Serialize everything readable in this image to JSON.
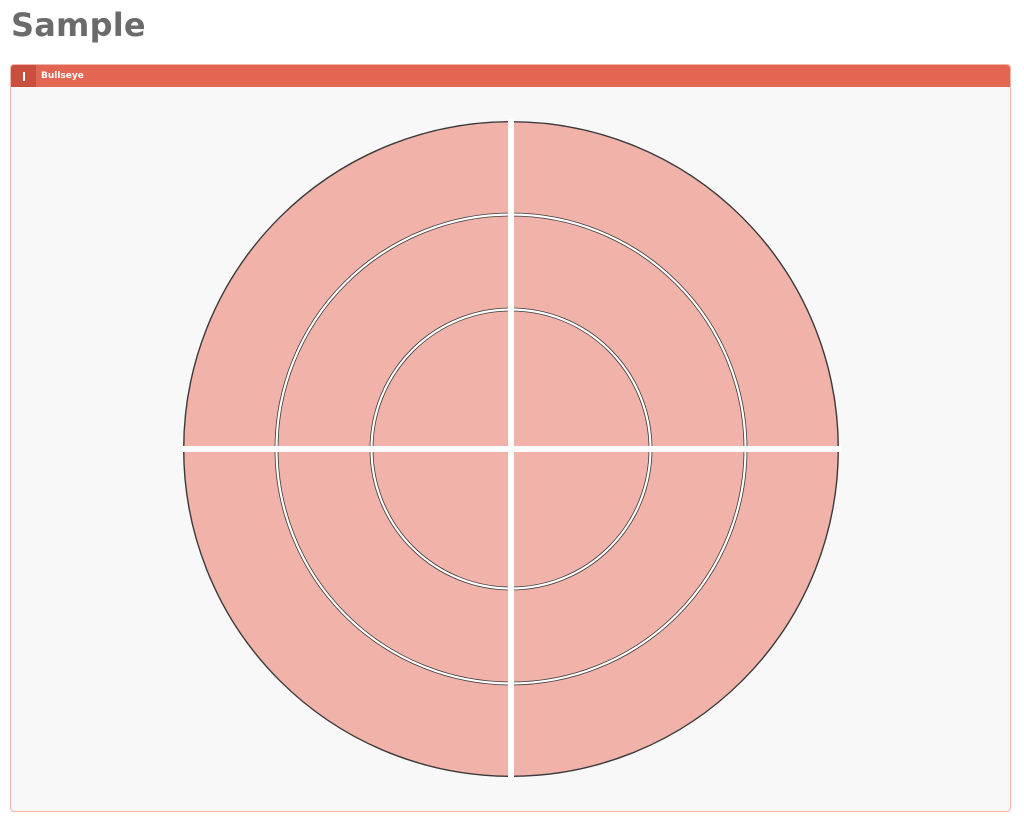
{
  "page": {
    "title": "Sample"
  },
  "panel": {
    "title": "Bullseye",
    "handle_icon": "drag-handle-icon"
  },
  "bullseye": {
    "rings": 3,
    "quadrants": 4,
    "fill_color": "#f1b2aa",
    "outline_color": "#3a3a3a",
    "gap_color": "#ffffff",
    "panel_color": "#f8f8f8",
    "header_color": "#e36653",
    "segments": [
      {
        "ring": "inner",
        "quadrant": "top-left"
      },
      {
        "ring": "inner",
        "quadrant": "top-right"
      },
      {
        "ring": "inner",
        "quadrant": "bottom-left"
      },
      {
        "ring": "inner",
        "quadrant": "bottom-right"
      },
      {
        "ring": "middle",
        "quadrant": "top-left"
      },
      {
        "ring": "middle",
        "quadrant": "top-right"
      },
      {
        "ring": "middle",
        "quadrant": "bottom-left"
      },
      {
        "ring": "middle",
        "quadrant": "bottom-right"
      },
      {
        "ring": "outer",
        "quadrant": "top-left"
      },
      {
        "ring": "outer",
        "quadrant": "top-right"
      },
      {
        "ring": "outer",
        "quadrant": "bottom-left"
      },
      {
        "ring": "outer",
        "quadrant": "bottom-right"
      }
    ]
  }
}
